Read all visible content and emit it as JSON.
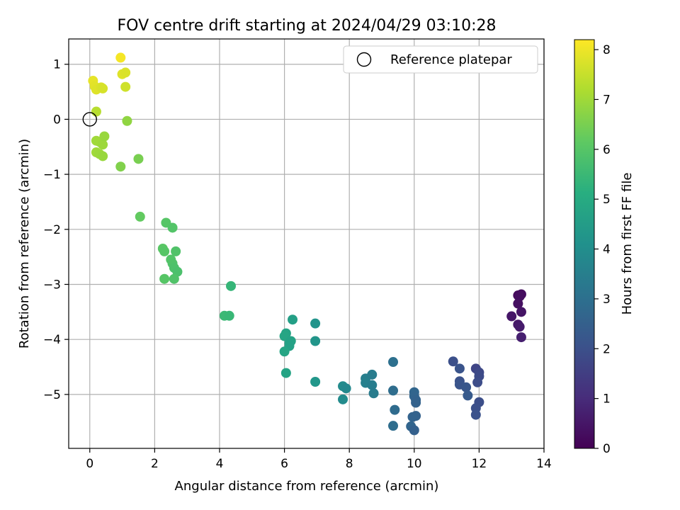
{
  "chart_data": {
    "type": "scatter",
    "title": "FOV centre drift starting at 2024/04/29 03:10:28",
    "xlabel": "Angular distance from reference (arcmin)",
    "ylabel": "Rotation from reference (arcmin)",
    "xlim": [
      -0.65,
      14
    ],
    "ylim": [
      -5.98,
      1.46
    ],
    "x_ticks": [
      0,
      2,
      4,
      6,
      8,
      10,
      12,
      14
    ],
    "y_ticks": [
      1,
      0,
      -1,
      -2,
      -3,
      -4,
      -5
    ],
    "grid": true,
    "legend": {
      "position": "top-right",
      "entries": [
        "Reference platepar"
      ]
    },
    "reference_point": {
      "x": 0,
      "y": 0
    },
    "colorbar": {
      "label": "Hours from first FF file",
      "range": [
        0,
        8.2
      ],
      "ticks": [
        0,
        1,
        2,
        3,
        4,
        5,
        6,
        7,
        8
      ],
      "colormap": "viridis"
    },
    "points": [
      {
        "x": 13.2,
        "y": -3.2,
        "hours": 0.2
      },
      {
        "x": 13.3,
        "y": -3.18,
        "hours": 0.25
      },
      {
        "x": 13.25,
        "y": -3.22,
        "hours": 0.3
      },
      {
        "x": 13.2,
        "y": -3.35,
        "hours": 0.35
      },
      {
        "x": 13.3,
        "y": -3.5,
        "hours": 0.45
      },
      {
        "x": 13.0,
        "y": -3.58,
        "hours": 0.5
      },
      {
        "x": 13.2,
        "y": -3.73,
        "hours": 0.55
      },
      {
        "x": 13.25,
        "y": -3.77,
        "hours": 0.6
      },
      {
        "x": 13.3,
        "y": -3.96,
        "hours": 0.7
      },
      {
        "x": 11.2,
        "y": -4.4,
        "hours": 2.0
      },
      {
        "x": 11.4,
        "y": -4.53,
        "hours": 2.1
      },
      {
        "x": 11.9,
        "y": -4.53,
        "hours": 1.7
      },
      {
        "x": 12.0,
        "y": -4.6,
        "hours": 1.8
      },
      {
        "x": 12.0,
        "y": -4.67,
        "hours": 1.85
      },
      {
        "x": 11.95,
        "y": -4.78,
        "hours": 1.9
      },
      {
        "x": 11.4,
        "y": -4.76,
        "hours": 2.05
      },
      {
        "x": 11.4,
        "y": -4.82,
        "hours": 2.15
      },
      {
        "x": 11.6,
        "y": -4.87,
        "hours": 2.2
      },
      {
        "x": 11.65,
        "y": -5.02,
        "hours": 2.3
      },
      {
        "x": 12.0,
        "y": -5.14,
        "hours": 1.95
      },
      {
        "x": 11.9,
        "y": -5.25,
        "hours": 2.0
      },
      {
        "x": 11.9,
        "y": -5.37,
        "hours": 2.05
      },
      {
        "x": 9.35,
        "y": -4.41,
        "hours": 3.0
      },
      {
        "x": 9.35,
        "y": -4.93,
        "hours": 2.9
      },
      {
        "x": 10.0,
        "y": -4.96,
        "hours": 2.7
      },
      {
        "x": 10.0,
        "y": -5.03,
        "hours": 2.65
      },
      {
        "x": 10.05,
        "y": -5.1,
        "hours": 2.6
      },
      {
        "x": 10.05,
        "y": -5.15,
        "hours": 2.55
      },
      {
        "x": 9.4,
        "y": -5.28,
        "hours": 2.85
      },
      {
        "x": 10.05,
        "y": -5.39,
        "hours": 2.55
      },
      {
        "x": 9.95,
        "y": -5.41,
        "hours": 2.6
      },
      {
        "x": 9.35,
        "y": -5.57,
        "hours": 2.9
      },
      {
        "x": 9.9,
        "y": -5.58,
        "hours": 2.65
      },
      {
        "x": 10.0,
        "y": -5.65,
        "hours": 2.5
      },
      {
        "x": 7.8,
        "y": -4.85,
        "hours": 3.9
      },
      {
        "x": 7.9,
        "y": -4.89,
        "hours": 3.8
      },
      {
        "x": 7.8,
        "y": -5.09,
        "hours": 3.9
      },
      {
        "x": 8.5,
        "y": -4.71,
        "hours": 3.5
      },
      {
        "x": 8.7,
        "y": -4.64,
        "hours": 3.4
      },
      {
        "x": 8.5,
        "y": -4.79,
        "hours": 3.55
      },
      {
        "x": 8.7,
        "y": -4.83,
        "hours": 3.45
      },
      {
        "x": 8.75,
        "y": -4.98,
        "hours": 3.4
      },
      {
        "x": 6.25,
        "y": -3.64,
        "hours": 4.6
      },
      {
        "x": 6.95,
        "y": -3.71,
        "hours": 4.2
      },
      {
        "x": 6.05,
        "y": -3.89,
        "hours": 4.75
      },
      {
        "x": 6.0,
        "y": -3.94,
        "hours": 4.8
      },
      {
        "x": 6.2,
        "y": -4.03,
        "hours": 4.7
      },
      {
        "x": 6.95,
        "y": -4.03,
        "hours": 4.25
      },
      {
        "x": 6.15,
        "y": -4.07,
        "hours": 4.7
      },
      {
        "x": 6.15,
        "y": -4.12,
        "hours": 4.65
      },
      {
        "x": 6.0,
        "y": -4.22,
        "hours": 4.8
      },
      {
        "x": 6.05,
        "y": -4.61,
        "hours": 4.75
      },
      {
        "x": 6.95,
        "y": -4.77,
        "hours": 4.3
      },
      {
        "x": 4.35,
        "y": -3.03,
        "hours": 5.4
      },
      {
        "x": 4.15,
        "y": -3.57,
        "hours": 5.5
      },
      {
        "x": 4.3,
        "y": -3.57,
        "hours": 5.45
      },
      {
        "x": 2.35,
        "y": -1.88,
        "hours": 6.0
      },
      {
        "x": 2.55,
        "y": -1.97,
        "hours": 5.95
      },
      {
        "x": 2.25,
        "y": -2.35,
        "hours": 6.05
      },
      {
        "x": 2.3,
        "y": -2.4,
        "hours": 6.0
      },
      {
        "x": 2.65,
        "y": -2.4,
        "hours": 5.9
      },
      {
        "x": 2.5,
        "y": -2.55,
        "hours": 5.95
      },
      {
        "x": 2.55,
        "y": -2.62,
        "hours": 5.9
      },
      {
        "x": 2.6,
        "y": -2.7,
        "hours": 5.85
      },
      {
        "x": 2.7,
        "y": -2.77,
        "hours": 5.8
      },
      {
        "x": 2.3,
        "y": -2.9,
        "hours": 6.0
      },
      {
        "x": 2.6,
        "y": -2.9,
        "hours": 5.9
      },
      {
        "x": 1.55,
        "y": -1.77,
        "hours": 6.2
      },
      {
        "x": 1.5,
        "y": -0.72,
        "hours": 6.5
      },
      {
        "x": 1.15,
        "y": -0.03,
        "hours": 6.8
      },
      {
        "x": 0.95,
        "y": -0.86,
        "hours": 6.6
      },
      {
        "x": 0.2,
        "y": -0.39,
        "hours": 7.0
      },
      {
        "x": 0.3,
        "y": -0.41,
        "hours": 7.0
      },
      {
        "x": 0.4,
        "y": -0.46,
        "hours": 6.95
      },
      {
        "x": 0.45,
        "y": -0.31,
        "hours": 6.9
      },
      {
        "x": 0.2,
        "y": -0.6,
        "hours": 7.0
      },
      {
        "x": 0.3,
        "y": -0.63,
        "hours": 6.95
      },
      {
        "x": 0.4,
        "y": -0.67,
        "hours": 6.9
      },
      {
        "x": 0.2,
        "y": 0.14,
        "hours": 7.3
      },
      {
        "x": 0.1,
        "y": 0.7,
        "hours": 7.9
      },
      {
        "x": 0.15,
        "y": 0.6,
        "hours": 7.85
      },
      {
        "x": 0.2,
        "y": 0.54,
        "hours": 7.8
      },
      {
        "x": 0.35,
        "y": 0.58,
        "hours": 7.75
      },
      {
        "x": 0.4,
        "y": 0.56,
        "hours": 7.7
      },
      {
        "x": 0.95,
        "y": 1.12,
        "hours": 8.1
      },
      {
        "x": 1.0,
        "y": 0.82,
        "hours": 7.8
      },
      {
        "x": 1.1,
        "y": 0.85,
        "hours": 7.75
      },
      {
        "x": 1.1,
        "y": 0.59,
        "hours": 7.6
      }
    ]
  }
}
